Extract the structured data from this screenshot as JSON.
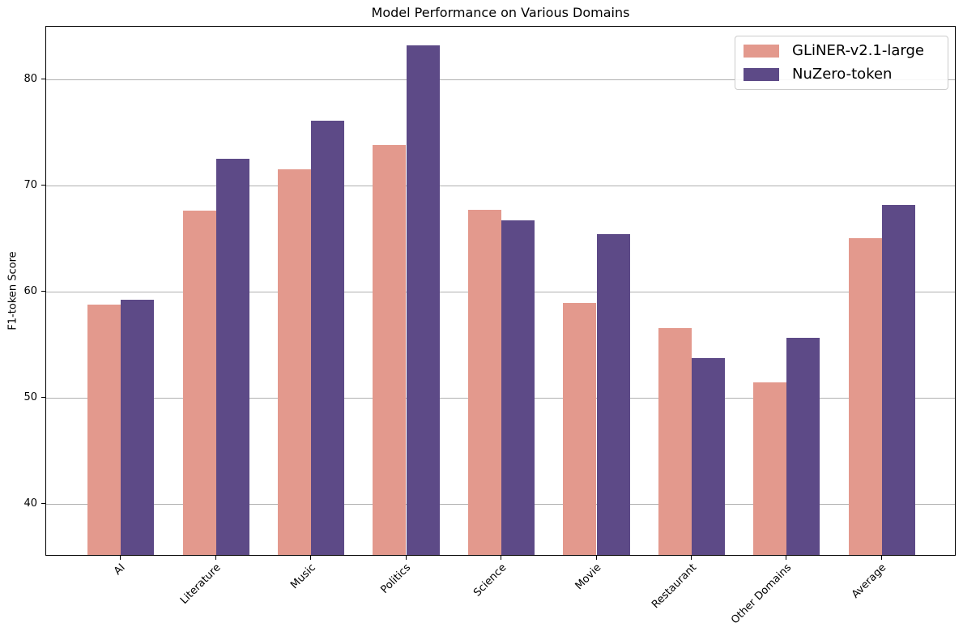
{
  "chart_data": {
    "type": "bar",
    "title": "Model Performance on Various Domains",
    "xlabel": "",
    "ylabel": "F1-token Score",
    "categories": [
      "AI",
      "Literature",
      "Music",
      "Politics",
      "Science",
      "Movie",
      "Restaurant",
      "Other Domains",
      "Average"
    ],
    "series": [
      {
        "name": "GLiNER-v2.1-large",
        "color": "#e3998d",
        "values": [
          58.6,
          67.5,
          71.4,
          73.7,
          67.6,
          58.8,
          56.4,
          51.3,
          64.9
        ]
      },
      {
        "name": "NuZero-token",
        "color": "#5d4a87",
        "values": [
          59.1,
          72.4,
          76.0,
          83.1,
          66.6,
          65.3,
          53.6,
          55.5,
          68.0
        ]
      }
    ],
    "ylim": [
      35,
      85
    ],
    "yticks": [
      40,
      50,
      60,
      70,
      80
    ],
    "bar_width": 0.35,
    "grid": true,
    "grid_color": "#b0b0b0",
    "legend_position": "upper right"
  }
}
